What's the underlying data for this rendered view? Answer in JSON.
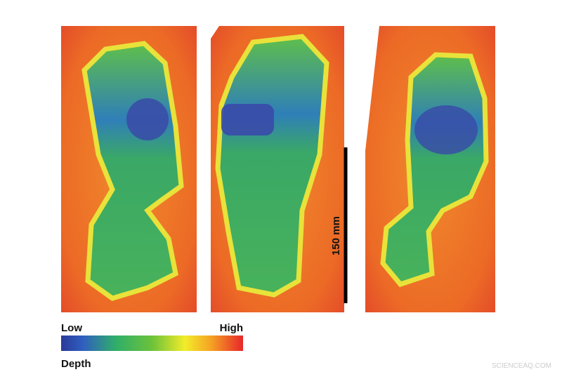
{
  "legend": {
    "low": "Low",
    "high": "High",
    "title": "Depth"
  },
  "scale_bar": {
    "label": "150 mm"
  },
  "watermark": "SCIENCEAQ.COM"
}
